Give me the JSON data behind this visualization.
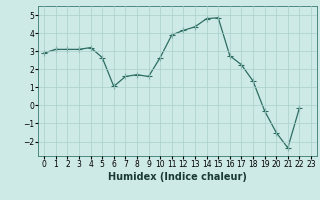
{
  "x": [
    0,
    1,
    2,
    3,
    4,
    5,
    6,
    7,
    8,
    9,
    10,
    11,
    12,
    13,
    14,
    15,
    16,
    17,
    18,
    19,
    20,
    21,
    22,
    23
  ],
  "y": [
    2.9,
    3.1,
    3.1,
    3.1,
    3.2,
    2.65,
    1.05,
    1.6,
    1.7,
    1.6,
    2.65,
    3.9,
    4.15,
    4.35,
    4.8,
    4.85,
    2.75,
    2.25,
    1.35,
    -0.3,
    -1.5,
    -2.35,
    -0.15,
    null
  ],
  "xlabel": "Humidex (Indice chaleur)",
  "ylim": [
    -2.8,
    5.5
  ],
  "xlim": [
    -0.5,
    23.5
  ],
  "yticks": [
    -2,
    -1,
    0,
    1,
    2,
    3,
    4,
    5
  ],
  "xtick_labels": [
    "0",
    "1",
    "2",
    "3",
    "4",
    "5",
    "6",
    "7",
    "8",
    "9",
    "10",
    "11",
    "12",
    "13",
    "14",
    "15",
    "16",
    "17",
    "18",
    "19",
    "20",
    "21",
    "22",
    "23"
  ],
  "line_color": "#2d6e62",
  "bg_color": "#ceeae7",
  "grid_color": "#aacfcc",
  "marker": "+",
  "marker_size": 4,
  "linewidth": 0.9,
  "tick_fontsize": 5.5,
  "xlabel_fontsize": 7.0
}
